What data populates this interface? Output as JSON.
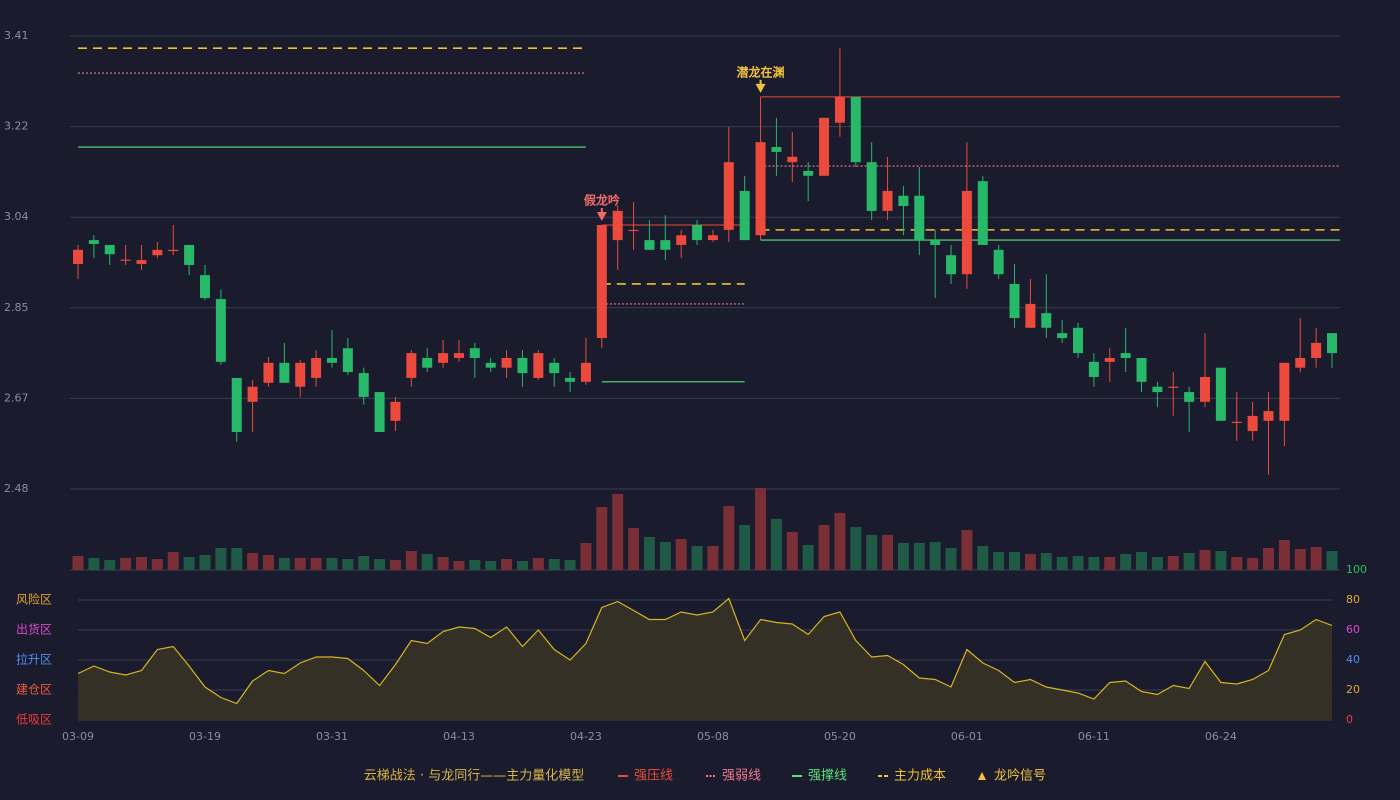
{
  "chart_data": {
    "type": "candlestick",
    "categories": [
      "03-09",
      null,
      null,
      null,
      null,
      null,
      null,
      null,
      "03-19",
      null,
      null,
      null,
      null,
      null,
      null,
      null,
      "03-31",
      null,
      null,
      null,
      null,
      null,
      null,
      null,
      "04-13",
      null,
      null,
      null,
      null,
      null,
      null,
      null,
      "04-23",
      null,
      null,
      null,
      null,
      null,
      null,
      null,
      "05-08",
      null,
      null,
      null,
      null,
      null,
      null,
      null,
      "05-20",
      null,
      null,
      null,
      null,
      null,
      null,
      null,
      "06-01",
      null,
      null,
      null,
      null,
      null,
      null,
      null,
      "06-11",
      null,
      null,
      null,
      null,
      null,
      null,
      null,
      "06-24",
      null,
      null,
      null,
      null,
      null,
      null,
      null
    ],
    "open": [
      2.942,
      2.991,
      2.981,
      2.95,
      2.942,
      2.96,
      2.969,
      2.981,
      2.919,
      2.87,
      2.708,
      2.659,
      2.698,
      2.739,
      2.69,
      2.708,
      2.749,
      2.769,
      2.718,
      2.679,
      2.62,
      2.708,
      2.749,
      2.739,
      2.749,
      2.769,
      2.739,
      2.729,
      2.749,
      2.708,
      2.739,
      2.708,
      2.7,
      2.79,
      2.991,
      3.01,
      2.991,
      2.991,
      2.981,
      3.022,
      2.991,
      3.012,
      3.092,
      3.001,
      3.182,
      3.151,
      3.133,
      3.123,
      3.232,
      3.285,
      3.151,
      3.051,
      3.082,
      3.082,
      2.991,
      2.96,
      2.921,
      3.112,
      2.971,
      2.901,
      2.811,
      2.841,
      2.8,
      2.811,
      2.741,
      2.741,
      2.759,
      2.749,
      2.69,
      2.689,
      2.679,
      2.659,
      2.729,
      2.617,
      2.599,
      2.62,
      2.62,
      2.729,
      2.749,
      2.8
    ],
    "high": [
      2.981,
      3.001,
      2.981,
      2.981,
      2.981,
      2.987,
      3.022,
      2.981,
      2.94,
      2.889,
      2.708,
      2.704,
      2.751,
      2.78,
      2.745,
      2.765,
      2.806,
      2.79,
      2.729,
      2.679,
      2.669,
      2.765,
      2.769,
      2.786,
      2.786,
      2.78,
      2.749,
      2.765,
      2.765,
      2.765,
      2.749,
      2.72,
      2.79,
      3.022,
      3.063,
      3.069,
      3.032,
      3.042,
      3.012,
      3.032,
      3.012,
      3.223,
      3.123,
      3.285,
      3.242,
      3.213,
      3.151,
      3.242,
      3.385,
      3.285,
      3.192,
      3.162,
      3.102,
      3.141,
      3.012,
      2.981,
      3.192,
      3.123,
      2.981,
      2.942,
      2.911,
      2.921,
      2.827,
      2.821,
      2.759,
      2.769,
      2.811,
      2.749,
      2.7,
      2.72,
      2.69,
      2.8,
      2.729,
      2.679,
      2.659,
      2.679,
      2.739,
      2.831,
      2.811,
      2.8
    ],
    "low": [
      2.911,
      2.954,
      2.94,
      2.94,
      2.93,
      2.954,
      2.96,
      2.919,
      2.868,
      2.735,
      2.577,
      2.597,
      2.69,
      2.698,
      2.669,
      2.69,
      2.729,
      2.714,
      2.653,
      2.597,
      2.599,
      2.69,
      2.72,
      2.729,
      2.741,
      2.708,
      2.72,
      2.708,
      2.69,
      2.704,
      2.69,
      2.679,
      2.694,
      2.769,
      2.93,
      2.971,
      2.971,
      2.95,
      2.954,
      2.981,
      2.987,
      2.987,
      2.991,
      2.991,
      3.123,
      3.11,
      3.071,
      3.123,
      3.203,
      3.141,
      3.032,
      3.032,
      3.001,
      2.96,
      2.872,
      2.901,
      2.891,
      2.981,
      2.911,
      2.811,
      2.811,
      2.79,
      2.78,
      2.749,
      2.69,
      2.7,
      2.72,
      2.679,
      2.648,
      2.63,
      2.597,
      2.648,
      2.62,
      2.579,
      2.579,
      2.509,
      2.568,
      2.72,
      2.729,
      2.729
    ],
    "close": [
      2.971,
      2.983,
      2.962,
      2.951,
      2.95,
      2.971,
      2.971,
      2.94,
      2.872,
      2.741,
      2.597,
      2.69,
      2.739,
      2.698,
      2.739,
      2.749,
      2.739,
      2.72,
      2.669,
      2.597,
      2.659,
      2.759,
      2.729,
      2.759,
      2.759,
      2.749,
      2.729,
      2.749,
      2.718,
      2.759,
      2.718,
      2.7,
      2.739,
      3.022,
      3.051,
      3.012,
      2.971,
      2.971,
      3.001,
      2.991,
      3.001,
      3.151,
      2.991,
      3.192,
      3.172,
      3.162,
      3.123,
      3.242,
      3.285,
      3.151,
      3.051,
      3.092,
      3.061,
      2.991,
      2.981,
      2.921,
      3.092,
      2.981,
      2.921,
      2.831,
      2.86,
      2.811,
      2.79,
      2.759,
      2.71,
      2.749,
      2.749,
      2.7,
      2.679,
      2.69,
      2.659,
      2.71,
      2.62,
      2.618,
      2.63,
      2.64,
      2.739,
      2.749,
      2.78,
      2.759
    ],
    "up_color": "#ec4a3c",
    "down_color": "#27b86a",
    "ylim": [
      2.48,
      3.41
    ],
    "yticks": [
      {
        "value": 3.41,
        "label": "3.41"
      },
      {
        "value": 3.224,
        "label": "3.22"
      },
      {
        "value": 3.038,
        "label": "3.04"
      },
      {
        "value": 2.852,
        "label": "2.85"
      },
      {
        "value": 2.666,
        "label": "2.67"
      },
      {
        "value": 2.48,
        "label": "2.48"
      }
    ],
    "grid": true,
    "volume": {
      "values": [
        14,
        12,
        10,
        12,
        13,
        11,
        18,
        13,
        15,
        22,
        22,
        17,
        15,
        12,
        12,
        12,
        12,
        11,
        14,
        11,
        10,
        19,
        16,
        13,
        9,
        10,
        9,
        11,
        9,
        12,
        11,
        10,
        27,
        63,
        76,
        42,
        33,
        28,
        31,
        24,
        24,
        64,
        45,
        82,
        51,
        38,
        25,
        45,
        57,
        43,
        35,
        35,
        27,
        27,
        28,
        22,
        40,
        24,
        18,
        18,
        16,
        17,
        13,
        14,
        13,
        13,
        16,
        18,
        13,
        14,
        17,
        20,
        19,
        13,
        12,
        22,
        30,
        21,
        23,
        19
      ],
      "ylim": [
        0,
        82
      ],
      "up_color": "#7a2f37",
      "down_color": "#1f5a46"
    },
    "indicator": {
      "values": [
        31,
        36,
        32,
        30,
        33,
        47,
        49,
        36,
        22,
        15,
        11,
        26,
        33,
        31,
        38,
        42,
        42,
        41,
        33,
        23,
        37,
        53,
        51,
        59,
        62,
        61,
        55,
        62,
        49,
        60,
        47,
        40,
        51,
        75,
        79,
        73,
        67,
        67,
        72,
        70,
        72,
        81,
        53,
        67,
        65,
        64,
        57,
        69,
        72,
        53,
        42,
        43,
        37,
        28,
        27,
        22,
        47,
        38,
        33,
        25,
        27,
        22,
        20,
        18,
        14,
        25,
        26,
        19,
        17,
        23,
        21,
        39,
        25,
        24,
        27,
        33,
        57,
        60,
        67,
        63
      ],
      "ylim": [
        0,
        100
      ],
      "yticks": [
        100,
        80,
        60,
        40,
        20,
        0
      ],
      "tick_colors": [
        "#27c45a",
        "#e8a32e",
        "#d94bd0",
        "#4f8ff0",
        "#e8a32e",
        "#ec3c3c"
      ],
      "color": "#d6b420",
      "fill": "#3a3426",
      "zones": [
        {
          "label": "风险区",
          "value": 80,
          "color": "#e8a32e"
        },
        {
          "label": "出货区",
          "value": 60,
          "color": "#d94bd0"
        },
        {
          "label": "拉升区",
          "value": 40,
          "color": "#4f8ff0"
        },
        {
          "label": "建仓区",
          "value": 20,
          "color": "#ec5a3c"
        },
        {
          "label": "低吸区",
          "value": 0,
          "color": "#ec3c3c"
        }
      ]
    },
    "levels": [
      {
        "start": 0,
        "end": 32,
        "strong_pressure": null,
        "weak": 3.334,
        "support": 3.182,
        "cost": 3.385
      },
      {
        "start": 33,
        "end": 42,
        "strong_pressure": 3.022,
        "weak": 2.86,
        "support": 2.7,
        "cost": 2.901
      },
      {
        "start": 43,
        "end": 79,
        "strong_pressure": 3.285,
        "weak": 3.143,
        "support": 2.991,
        "cost": 3.012
      }
    ],
    "signals": [
      {
        "label": "假龙吟",
        "index": 33,
        "color": "#f06a6a"
      },
      {
        "label": "潜龙在渊",
        "index": 43,
        "color": "#f0c040"
      }
    ],
    "legend": {
      "title": "云梯战法 · 与龙同行——主力量化模型",
      "title_color": "#d9b34a",
      "items": [
        {
          "label": "强压线",
          "key": "strong_pressure",
          "color": "#ec4a3c"
        },
        {
          "label": "强弱线",
          "key": "weak",
          "color": "#f07a8a"
        },
        {
          "label": "强撑线",
          "key": "support",
          "color": "#5ce07a"
        },
        {
          "label": "主力成本",
          "key": "cost",
          "color": "#f0c030"
        },
        {
          "label": "龙吟信号",
          "key": "signal",
          "color": "#f0c040"
        }
      ]
    }
  }
}
